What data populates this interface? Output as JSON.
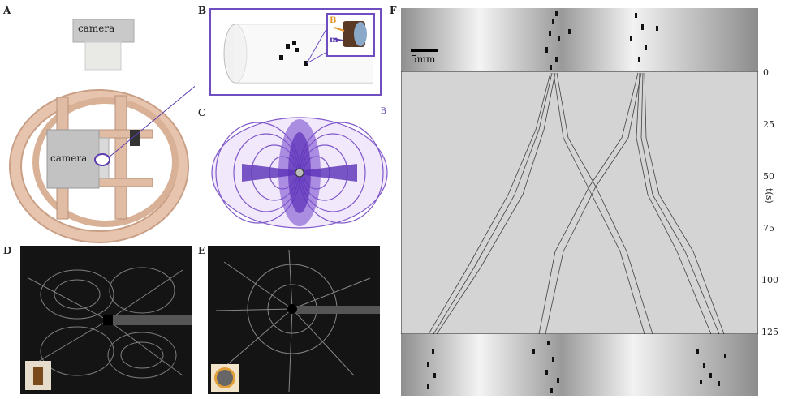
{
  "panels": {
    "A": {
      "label": "A",
      "camera_top": "camera",
      "camera_side": "camera"
    },
    "B": {
      "label": "B",
      "inset_B": "B",
      "inset_m": "m"
    },
    "C": {
      "label": "C",
      "axis_B": "B"
    },
    "D": {
      "label": "D"
    },
    "E": {
      "label": "E"
    },
    "F": {
      "label": "F",
      "scale_bar": "5mm",
      "axis_label": "t(s)",
      "ticks": [
        "0",
        "25",
        "50",
        "75",
        "100",
        "125"
      ]
    }
  }
}
